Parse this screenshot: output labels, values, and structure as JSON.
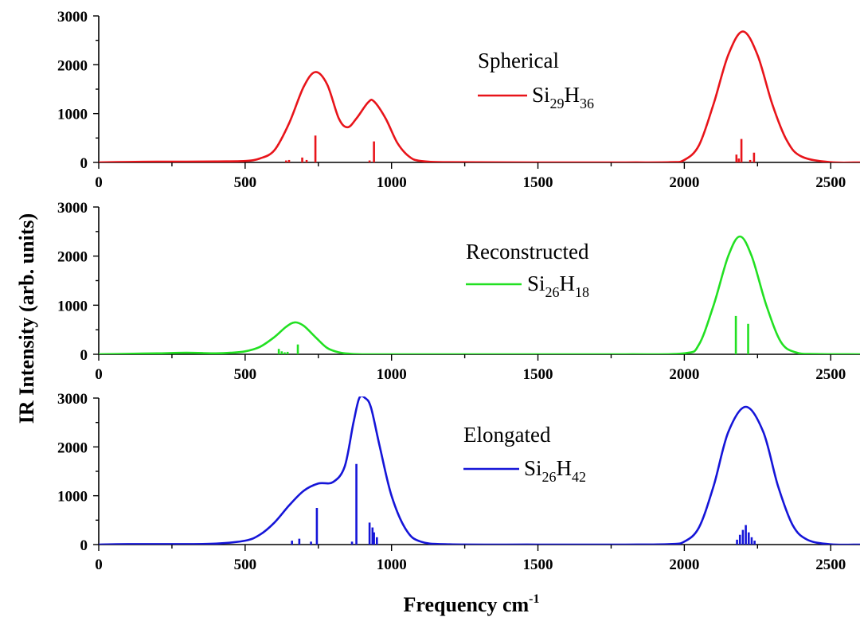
{
  "chart_data": {
    "type": "line",
    "xlabel": "Frequency cm",
    "xlabel_sup": "-1",
    "ylabel": "IR Intensity (arb. units)",
    "xlim": [
      0,
      2600
    ],
    "xticks": [
      0,
      500,
      1000,
      1500,
      2000,
      2500
    ],
    "panels": [
      {
        "name": "spherical",
        "label": "Spherical",
        "color": "#e8141a",
        "ylim": [
          0,
          3000
        ],
        "yticks": [
          0,
          1000,
          2000,
          3000
        ],
        "legend": {
          "main": "Si",
          "sub1": "29",
          "mid": "H",
          "sub2": "36"
        },
        "curve": {
          "x": [
            0,
            100,
            200,
            300,
            400,
            500,
            550,
            600,
            650,
            700,
            740,
            780,
            820,
            850,
            880,
            920,
            940,
            980,
            1020,
            1060,
            1100,
            1200,
            1500,
            1800,
            1950,
            2000,
            2050,
            2100,
            2150,
            2200,
            2250,
            2300,
            2350,
            2400,
            2500,
            2600
          ],
          "y": [
            0,
            10,
            15,
            15,
            20,
            30,
            80,
            250,
            800,
            1550,
            1850,
            1600,
            900,
            720,
            900,
            1230,
            1250,
            900,
            400,
            120,
            30,
            5,
            0,
            0,
            5,
            50,
            350,
            1200,
            2200,
            2680,
            2200,
            1200,
            450,
            120,
            5,
            0
          ]
        },
        "sticks": {
          "x": [
            640,
            650,
            695,
            710,
            740,
            925,
            940,
            2178,
            2186,
            2195,
            2225,
            2238
          ],
          "y": [
            40,
            50,
            100,
            50,
            550,
            40,
            430,
            160,
            80,
            480,
            50,
            200
          ]
        }
      },
      {
        "name": "reconstructed",
        "label": "Reconstructed",
        "color": "#22e022",
        "ylim": [
          0,
          3000
        ],
        "yticks": [
          0,
          1000,
          2000,
          3000
        ],
        "legend": {
          "main": "Si",
          "sub1": "26",
          "mid": "H",
          "sub2": "18"
        },
        "curve": {
          "x": [
            0,
            100,
            200,
            300,
            400,
            450,
            500,
            550,
            600,
            640,
            670,
            700,
            740,
            780,
            820,
            860,
            900,
            1000,
            1500,
            1800,
            2000,
            2050,
            2100,
            2150,
            2190,
            2230,
            2280,
            2330,
            2380,
            2450,
            2600
          ],
          "y": [
            0,
            10,
            20,
            30,
            20,
            30,
            60,
            150,
            350,
            560,
            650,
            580,
            350,
            130,
            40,
            10,
            0,
            0,
            0,
            0,
            20,
            200,
            1000,
            2000,
            2400,
            2000,
            1000,
            250,
            40,
            5,
            0
          ]
        },
        "sticks": {
          "x": [
            615,
            625,
            635,
            645,
            680,
            2176,
            2218
          ],
          "y": [
            110,
            60,
            40,
            50,
            200,
            780,
            620
          ]
        }
      },
      {
        "name": "elongated",
        "label": "Elongated",
        "color": "#1515d8",
        "ylim": [
          0,
          3000
        ],
        "yticks": [
          0,
          1000,
          2000,
          3000
        ],
        "legend": {
          "main": "Si",
          "sub1": "26",
          "mid": "H",
          "sub2": "42"
        },
        "curve": {
          "x": [
            0,
            100,
            200,
            300,
            400,
            500,
            550,
            600,
            650,
            700,
            750,
            800,
            840,
            870,
            890,
            910,
            930,
            960,
            1000,
            1050,
            1100,
            1200,
            1500,
            1800,
            1950,
            2000,
            2050,
            2100,
            2150,
            2210,
            2270,
            2320,
            2370,
            2420,
            2500,
            2600
          ],
          "y": [
            0,
            10,
            10,
            10,
            20,
            80,
            200,
            450,
            800,
            1100,
            1250,
            1280,
            1600,
            2500,
            3000,
            3000,
            2800,
            2000,
            1000,
            300,
            60,
            5,
            0,
            0,
            10,
            60,
            350,
            1200,
            2300,
            2820,
            2300,
            1200,
            400,
            100,
            5,
            0
          ]
        },
        "sticks": {
          "x": [
            660,
            685,
            725,
            745,
            865,
            880,
            925,
            935,
            940,
            950,
            2180,
            2190,
            2200,
            2210,
            2220,
            2230,
            2240
          ],
          "y": [
            80,
            120,
            60,
            750,
            60,
            1650,
            450,
            350,
            250,
            150,
            100,
            200,
            300,
            400,
            250,
            150,
            80
          ]
        }
      }
    ]
  }
}
